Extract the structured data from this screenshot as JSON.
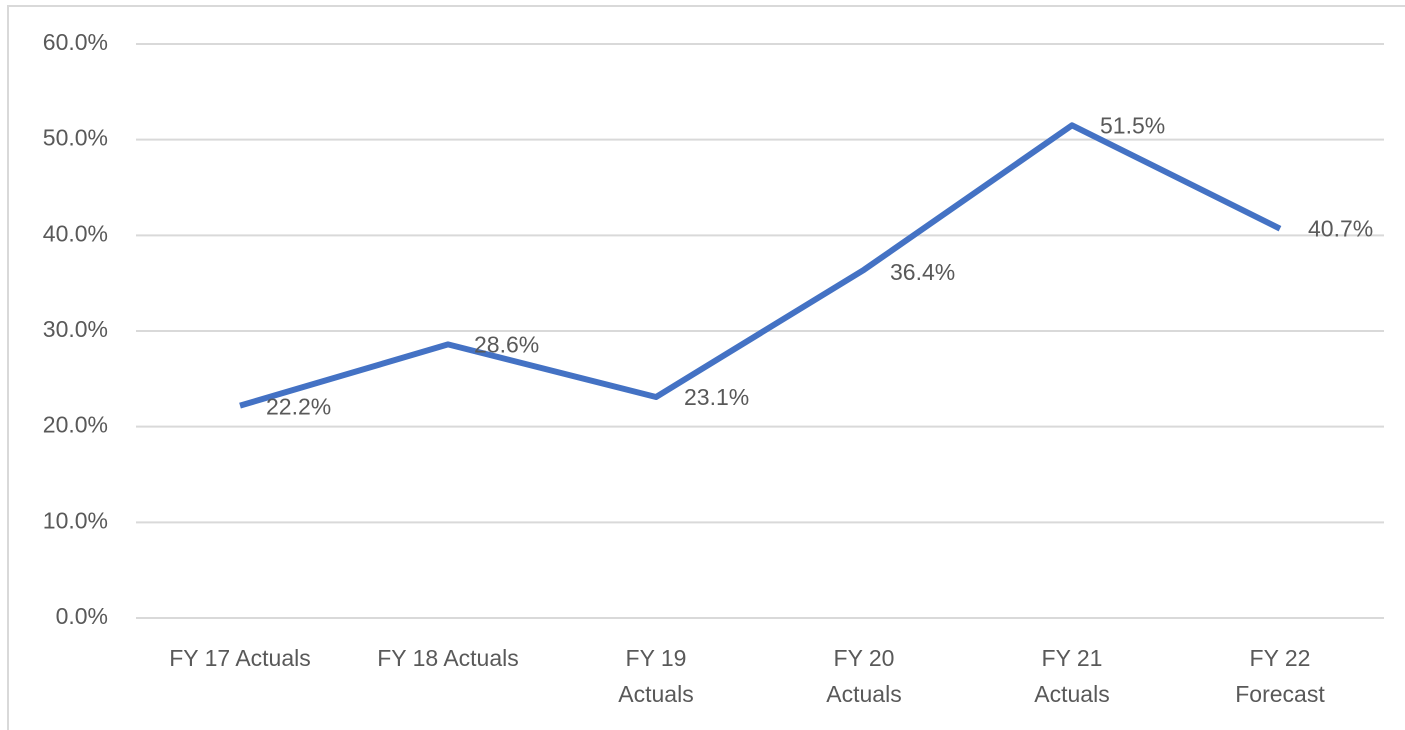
{
  "chart_data": {
    "type": "line",
    "categories": [
      "FY 17 Actuals",
      "FY 18 Actuals",
      "FY 19 Actuals",
      "FY 20 Actuals",
      "FY 21 Actuals",
      "FY 22 Forecast"
    ],
    "values": [
      22.2,
      28.6,
      23.1,
      36.4,
      51.5,
      40.7
    ],
    "value_labels": [
      "22.2%",
      "28.6%",
      "23.1%",
      "36.4%",
      "51.5%",
      "40.7%"
    ],
    "color": "#4472c4",
    "ylim": [
      0,
      60
    ],
    "yticks": [
      {
        "value": 0,
        "label": "0.0%"
      },
      {
        "value": 10,
        "label": "10.0%"
      },
      {
        "value": 20,
        "label": "20.0%"
      },
      {
        "value": 30,
        "label": "30.0%"
      },
      {
        "value": 40,
        "label": "40.0%"
      },
      {
        "value": 50,
        "label": "50.0%"
      },
      {
        "value": 60,
        "label": "60.0%"
      }
    ],
    "grid": true
  }
}
